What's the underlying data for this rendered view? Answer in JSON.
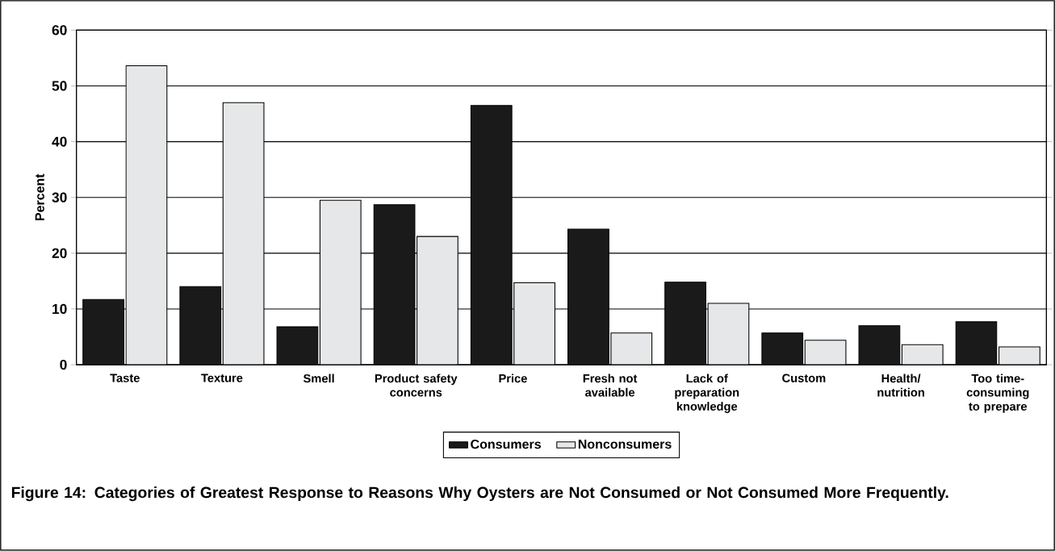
{
  "chart_data": {
    "type": "bar",
    "ylabel": "Percent",
    "categories": [
      "Taste",
      "Texture",
      "Smell",
      "Product safety concerns",
      "Price",
      "Fresh not available",
      "Lack of preparation knowledge",
      "Custom",
      "Health/ nutrition",
      "Too time-consuming to prepare"
    ],
    "series": [
      {
        "name": "Consumers",
        "color": "#1a1a1a",
        "values": [
          11.7,
          14.0,
          6.8,
          28.7,
          46.5,
          24.3,
          14.8,
          5.7,
          7.0,
          7.7
        ]
      },
      {
        "name": "Nonconsumers",
        "color": "#e6e7e9",
        "values": [
          53.6,
          47.0,
          29.5,
          23.0,
          14.7,
          5.7,
          11.0,
          4.4,
          3.6,
          3.2
        ]
      }
    ],
    "ylim": [
      0,
      60
    ],
    "yticks": [
      0,
      10,
      20,
      30,
      40,
      50,
      60
    ],
    "grid": "y",
    "legend": "bottom",
    "annotations": [
      "Figure 14: Categories of Greatest Response to Reasons Why Oysters are Not Consumed or Not Consumed More Frequently."
    ]
  }
}
